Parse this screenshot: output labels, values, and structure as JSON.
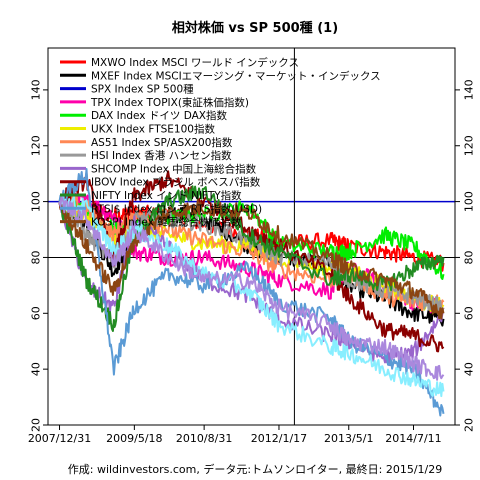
{
  "chart_data": {
    "type": "line",
    "title": "相対株価 vs SP 500種 (1)",
    "caption": "作成: wildinvestors.com, データ元:トムソンロイター, 最終日: 2015/1/29",
    "xlabel": "",
    "ylabel": "",
    "x": [
      "2007/12/31",
      "2008/6/30",
      "2008/12/31",
      "2009/5/18",
      "2009/12/31",
      "2010/8/31",
      "2011/6/30",
      "2012/1/17",
      "2012/12/31",
      "2013/5/1",
      "2013/12/31",
      "2014/7/11",
      "2015/1/29"
    ],
    "x_tick_labels": [
      "2007/12/31",
      "2009/5/18",
      "2010/8/31",
      "2012/1/17",
      "2013/5/1",
      "2014/7/11"
    ],
    "y_ticks": [
      20,
      40,
      60,
      80,
      100,
      120,
      140
    ],
    "ylim": [
      20,
      155
    ],
    "grid": false,
    "legend_position": "top-left",
    "reference_lines": {
      "horizontal": [
        80,
        100
      ],
      "vertical": "2012/4/30"
    },
    "series": [
      {
        "name": "MXWO Index MSCI ワールド インデックス",
        "color": "#ff0000",
        "values": [
          100,
          98,
          95,
          96,
          95,
          92,
          88,
          85,
          86,
          84,
          82,
          80,
          78
        ]
      },
      {
        "name": "MXEF Index MSCIエマージング・マーケット・インデックス",
        "color": "#000000",
        "values": [
          100,
          92,
          75,
          88,
          96,
          94,
          84,
          80,
          78,
          70,
          65,
          60,
          58
        ]
      },
      {
        "name": "SPX Index SP 500種",
        "color": "#0000cc",
        "values": [
          100,
          100,
          100,
          100,
          100,
          100,
          100,
          100,
          100,
          100,
          100,
          100,
          100
        ]
      },
      {
        "name": "TPX Index TOPIX(東証株価指数)",
        "color": "#ff00aa",
        "values": [
          100,
          100,
          95,
          82,
          80,
          80,
          76,
          72,
          68,
          76,
          70,
          64,
          62
        ]
      },
      {
        "name": "DAX Index ドイツ DAX指数",
        "color": "#00ee00",
        "values": [
          100,
          96,
          90,
          92,
          94,
          95,
          98,
          85,
          82,
          82,
          88,
          84,
          74
        ]
      },
      {
        "name": "UKX Index FTSE100指数",
        "color": "#eeee00",
        "values": [
          100,
          95,
          85,
          90,
          88,
          85,
          84,
          80,
          76,
          75,
          70,
          65,
          63
        ]
      },
      {
        "name": "AS51 Index SP/ASX200指数",
        "color": "#ff8855",
        "values": [
          100,
          98,
          88,
          96,
          90,
          86,
          82,
          76,
          72,
          74,
          66,
          64,
          64
        ]
      },
      {
        "name": "HSI Index 香港 ハンセン指数",
        "color": "#999999",
        "values": [
          100,
          88,
          78,
          94,
          94,
          92,
          86,
          80,
          78,
          72,
          68,
          66,
          62
        ]
      },
      {
        "name": "SHCOMP Index 中国上海総合指数",
        "color": "#9966cc",
        "values": [
          100,
          70,
          62,
          92,
          84,
          72,
          66,
          58,
          52,
          50,
          44,
          46,
          60
        ]
      },
      {
        "name": "IBOV Index ブラジル ボベスパ指数",
        "color": "#8b0000",
        "values": [
          100,
          108,
          80,
          102,
          108,
          100,
          90,
          84,
          74,
          66,
          54,
          52,
          48
        ]
      },
      {
        "name": "NIFTY Index インド NIFTY指数",
        "color": "#228b22",
        "values": [
          100,
          72,
          56,
          88,
          100,
          104,
          88,
          82,
          72,
          74,
          70,
          76,
          80
        ]
      },
      {
        "name": "RTSI$ Index ロシア RTS指数(USD)",
        "color": "#5b9bd5",
        "values": [
          100,
          110,
          40,
          62,
          74,
          70,
          76,
          64,
          58,
          50,
          44,
          40,
          24
        ]
      },
      {
        "name": "KOSPI Index 韓国総合株価指数",
        "color": "#8b4513",
        "values": [
          100,
          84,
          68,
          86,
          96,
          98,
          96,
          88,
          80,
          76,
          72,
          68,
          60
        ]
      },
      {
        "name": "",
        "color": "#88eeff",
        "values": [
          100,
          98,
          82,
          90,
          84,
          74,
          68,
          56,
          48,
          46,
          40,
          36,
          32
        ]
      },
      {
        "name": "",
        "color": "#aa88dd",
        "values": [
          100,
          94,
          78,
          90,
          80,
          72,
          72,
          62,
          56,
          50,
          48,
          42,
          38
        ]
      }
    ]
  }
}
